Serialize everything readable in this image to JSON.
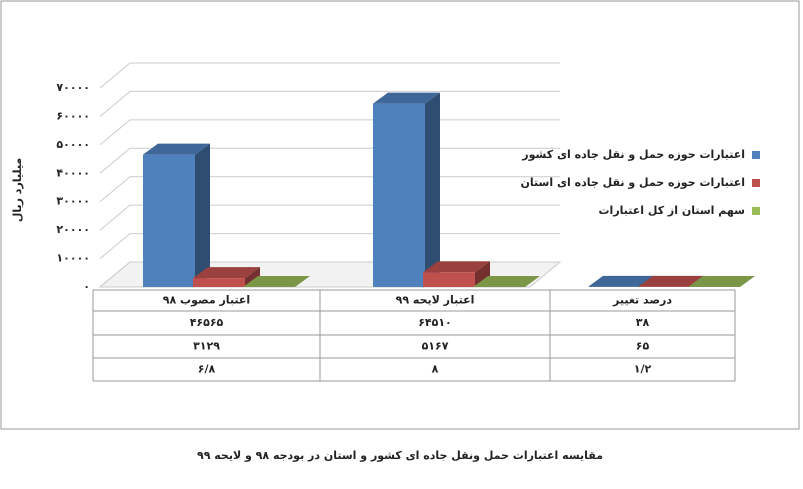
{
  "chart_data": {
    "type": "bar3d",
    "title": "مقایسه اعتبارات حمل ونقل جاده ای کشور و استان در بودجه ۹۸ و لایحه ۹۹",
    "y_label": "میلیارد ریال",
    "categories": [
      "اعتبار مصوب ۹۸",
      "اعتبار لایحه ۹۹",
      "درصد تغییر"
    ],
    "series": [
      {
        "name": "اعتبارات حوزه حمل و نقل جاده ای کشور",
        "color": "#4f81bd",
        "values": [
          46565,
          64510,
          38
        ],
        "value_labels": [
          "۴۶۵۶۵",
          "۶۴۵۱۰",
          "۳۸"
        ]
      },
      {
        "name": "اعتبارات حوزه حمل و نقل جاده ای استان",
        "color": "#c0504d",
        "values": [
          3129,
          5167,
          65
        ],
        "value_labels": [
          "۳۱۲۹",
          "۵۱۶۷",
          "۶۵"
        ]
      },
      {
        "name": "سهم استان از کل اعتبارات",
        "color": "#9bbb59",
        "values": [
          6.8,
          8,
          1.2
        ],
        "value_labels": [
          "۶/۸",
          "۸",
          "۱/۲"
        ]
      }
    ],
    "ylim": [
      0,
      70000
    ],
    "yticks": [
      {
        "value": 0,
        "label": "۰"
      },
      {
        "value": 10000,
        "label": "۱۰۰۰۰"
      },
      {
        "value": 20000,
        "label": "۲۰۰۰۰"
      },
      {
        "value": 30000,
        "label": "۳۰۰۰۰"
      },
      {
        "value": 40000,
        "label": "۴۰۰۰۰"
      },
      {
        "value": 50000,
        "label": "۵۰۰۰۰"
      },
      {
        "value": 60000,
        "label": "۶۰۰۰۰"
      },
      {
        "value": 70000,
        "label": "۷۰۰۰۰"
      }
    ],
    "grid": true
  }
}
